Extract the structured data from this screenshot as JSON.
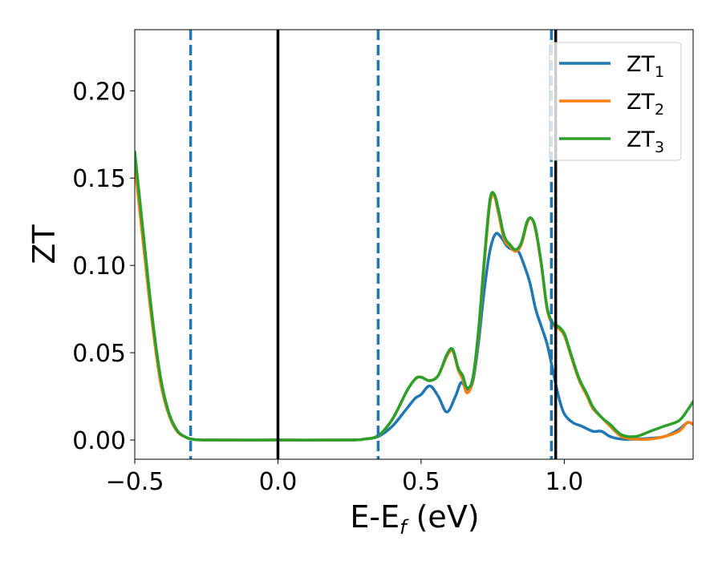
{
  "chart_data": {
    "type": "line",
    "xlabel": "E-E_f (eV)",
    "xlabel_main": "E-E",
    "xlabel_sub": "f",
    "xlabel_tail": " (eV)",
    "ylabel": "ZT",
    "xlim": [
      -0.5,
      1.45
    ],
    "ylim": [
      -0.011,
      0.235
    ],
    "grid": false,
    "legend_position": "top-right",
    "x_ticks": [
      -0.5,
      0.0,
      0.5,
      1.0
    ],
    "x_tick_labels": [
      "−0.5",
      "0.0",
      "0.5",
      "1.0"
    ],
    "y_ticks": [
      0.0,
      0.05,
      0.1,
      0.15,
      0.2
    ],
    "y_tick_labels": [
      "0.00",
      "0.05",
      "0.10",
      "0.15",
      "0.20"
    ],
    "vertical_lines": [
      {
        "x": -0.305,
        "style": "dashed",
        "color": "#1f77b4"
      },
      {
        "x": 0.0,
        "style": "solid",
        "color": "#000000"
      },
      {
        "x": 0.35,
        "style": "dashed",
        "color": "#1f77b4"
      },
      {
        "x": 0.955,
        "style": "dashed",
        "color": "#1f77b4"
      },
      {
        "x": 0.97,
        "style": "solid",
        "color": "#000000"
      }
    ],
    "series": [
      {
        "name": "ZT",
        "subscript": "1",
        "color": "#1f77b4",
        "points": [
          [
            -0.5,
            0.16
          ],
          [
            -0.47,
            0.115
          ],
          [
            -0.44,
            0.07
          ],
          [
            -0.41,
            0.035
          ],
          [
            -0.38,
            0.015
          ],
          [
            -0.35,
            0.005
          ],
          [
            -0.32,
            0.0015
          ],
          [
            -0.3,
            0.0005
          ],
          [
            -0.25,
            0.0
          ],
          [
            0.0,
            0.0
          ],
          [
            0.25,
            0.0
          ],
          [
            0.3,
            0.0005
          ],
          [
            0.35,
            0.002
          ],
          [
            0.4,
            0.008
          ],
          [
            0.45,
            0.018
          ],
          [
            0.48,
            0.024
          ],
          [
            0.5,
            0.026
          ],
          [
            0.53,
            0.031
          ],
          [
            0.56,
            0.025
          ],
          [
            0.59,
            0.016
          ],
          [
            0.62,
            0.025
          ],
          [
            0.64,
            0.033
          ],
          [
            0.66,
            0.029
          ],
          [
            0.68,
            0.033
          ],
          [
            0.7,
            0.055
          ],
          [
            0.72,
            0.085
          ],
          [
            0.74,
            0.108
          ],
          [
            0.76,
            0.118
          ],
          [
            0.78,
            0.116
          ],
          [
            0.8,
            0.111
          ],
          [
            0.82,
            0.109
          ],
          [
            0.84,
            0.108
          ],
          [
            0.86,
            0.1
          ],
          [
            0.88,
            0.09
          ],
          [
            0.9,
            0.075
          ],
          [
            0.92,
            0.065
          ],
          [
            0.94,
            0.055
          ],
          [
            0.96,
            0.04
          ],
          [
            0.98,
            0.025
          ],
          [
            1.0,
            0.015
          ],
          [
            1.03,
            0.01
          ],
          [
            1.06,
            0.008
          ],
          [
            1.1,
            0.005
          ],
          [
            1.13,
            0.005
          ],
          [
            1.16,
            0.002
          ],
          [
            1.2,
            0.0005
          ],
          [
            1.25,
            0.0005
          ],
          [
            1.3,
            0.001
          ],
          [
            1.35,
            0.002
          ],
          [
            1.4,
            0.006
          ],
          [
            1.43,
            0.01
          ],
          [
            1.45,
            0.009
          ]
        ]
      },
      {
        "name": "ZT",
        "subscript": "2",
        "color": "#ff7f0e",
        "points": [
          [
            -0.5,
            0.158
          ],
          [
            -0.47,
            0.112
          ],
          [
            -0.44,
            0.068
          ],
          [
            -0.41,
            0.033
          ],
          [
            -0.38,
            0.014
          ],
          [
            -0.35,
            0.0045
          ],
          [
            -0.32,
            0.0015
          ],
          [
            -0.3,
            0.0005
          ],
          [
            -0.25,
            0.0
          ],
          [
            0.0,
            0.0
          ],
          [
            0.25,
            0.0
          ],
          [
            0.3,
            0.0005
          ],
          [
            0.35,
            0.0025
          ],
          [
            0.4,
            0.012
          ],
          [
            0.45,
            0.028
          ],
          [
            0.48,
            0.035
          ],
          [
            0.5,
            0.036
          ],
          [
            0.53,
            0.034
          ],
          [
            0.56,
            0.037
          ],
          [
            0.59,
            0.048
          ],
          [
            0.61,
            0.051
          ],
          [
            0.63,
            0.04
          ],
          [
            0.645,
            0.035
          ],
          [
            0.66,
            0.027
          ],
          [
            0.68,
            0.034
          ],
          [
            0.7,
            0.06
          ],
          [
            0.72,
            0.1
          ],
          [
            0.74,
            0.135
          ],
          [
            0.755,
            0.14
          ],
          [
            0.77,
            0.13
          ],
          [
            0.79,
            0.115
          ],
          [
            0.81,
            0.111
          ],
          [
            0.83,
            0.108
          ],
          [
            0.85,
            0.112
          ],
          [
            0.87,
            0.124
          ],
          [
            0.885,
            0.127
          ],
          [
            0.9,
            0.12
          ],
          [
            0.92,
            0.1
          ],
          [
            0.94,
            0.075
          ],
          [
            0.96,
            0.066
          ],
          [
            0.98,
            0.064
          ],
          [
            1.0,
            0.06
          ],
          [
            1.02,
            0.05
          ],
          [
            1.05,
            0.035
          ],
          [
            1.08,
            0.025
          ],
          [
            1.1,
            0.018
          ],
          [
            1.13,
            0.013
          ],
          [
            1.16,
            0.008
          ],
          [
            1.2,
            0.002
          ],
          [
            1.25,
            0.0005
          ],
          [
            1.3,
            0.0005
          ],
          [
            1.35,
            0.002
          ],
          [
            1.4,
            0.005
          ],
          [
            1.43,
            0.01
          ],
          [
            1.45,
            0.009
          ]
        ]
      },
      {
        "name": "ZT",
        "subscript": "3",
        "color": "#2ca02c",
        "points": [
          [
            -0.5,
            0.165
          ],
          [
            -0.47,
            0.118
          ],
          [
            -0.44,
            0.072
          ],
          [
            -0.41,
            0.036
          ],
          [
            -0.38,
            0.015
          ],
          [
            -0.35,
            0.005
          ],
          [
            -0.32,
            0.0015
          ],
          [
            -0.3,
            0.0005
          ],
          [
            -0.25,
            0.0
          ],
          [
            0.0,
            0.0
          ],
          [
            0.25,
            0.0
          ],
          [
            0.3,
            0.0005
          ],
          [
            0.35,
            0.0025
          ],
          [
            0.4,
            0.012
          ],
          [
            0.45,
            0.028
          ],
          [
            0.48,
            0.035
          ],
          [
            0.5,
            0.036
          ],
          [
            0.53,
            0.034
          ],
          [
            0.56,
            0.037
          ],
          [
            0.59,
            0.049
          ],
          [
            0.61,
            0.052
          ],
          [
            0.63,
            0.041
          ],
          [
            0.645,
            0.037
          ],
          [
            0.66,
            0.03
          ],
          [
            0.68,
            0.035
          ],
          [
            0.7,
            0.062
          ],
          [
            0.72,
            0.102
          ],
          [
            0.74,
            0.137
          ],
          [
            0.755,
            0.141
          ],
          [
            0.77,
            0.132
          ],
          [
            0.79,
            0.117
          ],
          [
            0.81,
            0.112
          ],
          [
            0.83,
            0.109
          ],
          [
            0.85,
            0.113
          ],
          [
            0.87,
            0.125
          ],
          [
            0.885,
            0.127
          ],
          [
            0.9,
            0.121
          ],
          [
            0.92,
            0.101
          ],
          [
            0.94,
            0.076
          ],
          [
            0.96,
            0.067
          ],
          [
            0.98,
            0.065
          ],
          [
            1.0,
            0.061
          ],
          [
            1.02,
            0.051
          ],
          [
            1.05,
            0.036
          ],
          [
            1.08,
            0.026
          ],
          [
            1.1,
            0.019
          ],
          [
            1.13,
            0.013
          ],
          [
            1.16,
            0.009
          ],
          [
            1.2,
            0.003
          ],
          [
            1.25,
            0.002
          ],
          [
            1.3,
            0.005
          ],
          [
            1.35,
            0.008
          ],
          [
            1.4,
            0.011
          ],
          [
            1.43,
            0.017
          ],
          [
            1.45,
            0.022
          ]
        ]
      }
    ]
  }
}
